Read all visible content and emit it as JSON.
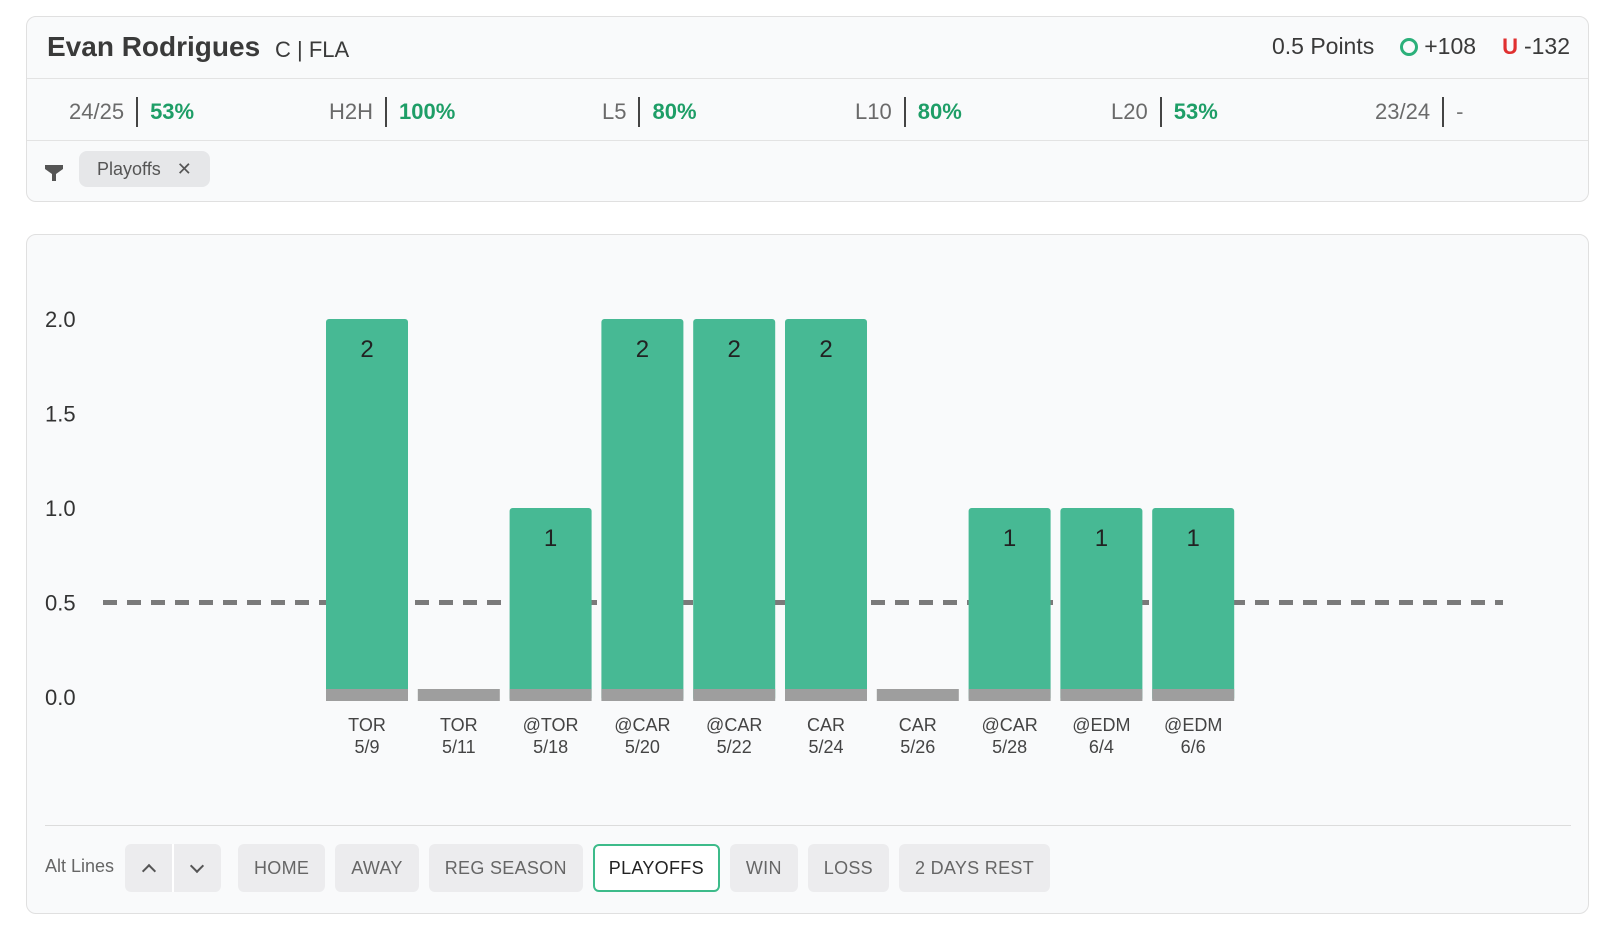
{
  "header": {
    "player_name": "Evan Rodrigues",
    "player_meta": "C | FLA",
    "line_label": "0.5 Points",
    "over_odds": "+108",
    "under_letter": "U",
    "under_odds": "-132"
  },
  "stats": [
    {
      "label": "24/25",
      "value": "53%"
    },
    {
      "label": "H2H",
      "value": "100%"
    },
    {
      "label": "L5",
      "value": "80%"
    },
    {
      "label": "L10",
      "value": "80%"
    },
    {
      "label": "L20",
      "value": "53%"
    },
    {
      "label": "23/24",
      "value": "-"
    }
  ],
  "active_filter_chip": "Playoffs",
  "chart_data": {
    "type": "bar",
    "categories": [
      "TOR 5/9",
      "TOR 5/11",
      "@TOR 5/18",
      "@CAR 5/20",
      "@CAR 5/22",
      "CAR 5/24",
      "CAR 5/26",
      "@CAR 5/28",
      "@EDM 6/4",
      "@EDM 6/6"
    ],
    "opponents": [
      "TOR",
      "TOR",
      "@TOR",
      "@CAR",
      "@CAR",
      "CAR",
      "CAR",
      "@CAR",
      "@EDM",
      "@EDM"
    ],
    "dates": [
      "5/9",
      "5/11",
      "5/18",
      "5/20",
      "5/22",
      "5/24",
      "5/26",
      "5/28",
      "6/4",
      "6/6"
    ],
    "values": [
      2,
      0,
      1,
      2,
      2,
      2,
      0,
      1,
      1,
      1
    ],
    "value_labels": [
      "2",
      "",
      "1",
      "2",
      "2",
      "2",
      "",
      "1",
      "1",
      "1"
    ],
    "y_ticks": [
      "0.0",
      "0.5",
      "1.0",
      "1.5",
      "2.0"
    ],
    "ylim": [
      0,
      2
    ],
    "reference_line": 0.5,
    "hit_color": "#47b994",
    "miss_color": "#9e9e9e",
    "line_color": "#7a7a7a"
  },
  "bottom": {
    "alt_lines_label": "Alt Lines",
    "filters": [
      "HOME",
      "AWAY",
      "REG SEASON",
      "PLAYOFFS",
      "WIN",
      "LOSS",
      "2 DAYS REST"
    ],
    "active_filter": "PLAYOFFS"
  }
}
